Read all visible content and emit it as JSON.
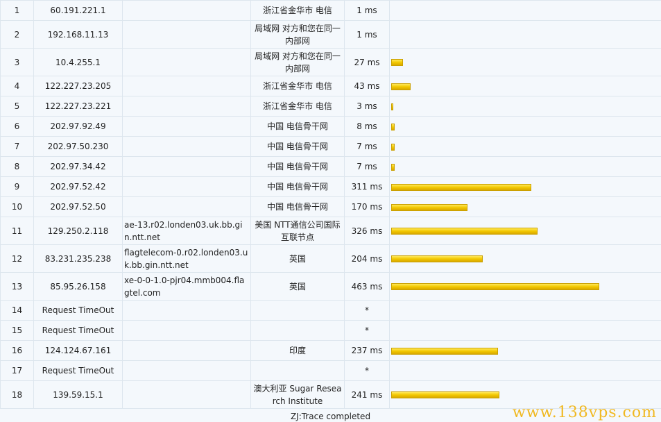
{
  "rows": [
    {
      "hop": "1",
      "ip": "60.191.221.1",
      "host": "",
      "location": "浙江省金华市 电信",
      "time": "1 ms",
      "ms": 1
    },
    {
      "hop": "2",
      "ip": "192.168.11.13",
      "host": "",
      "location": "局域网 对方和您在同一内部网",
      "time": "1 ms",
      "ms": 1
    },
    {
      "hop": "3",
      "ip": "10.4.255.1",
      "host": "",
      "location": "局域网 对方和您在同一内部网",
      "time": "27 ms",
      "ms": 27
    },
    {
      "hop": "4",
      "ip": "122.227.23.205",
      "host": "",
      "location": "浙江省金华市 电信",
      "time": "43 ms",
      "ms": 43
    },
    {
      "hop": "5",
      "ip": "122.227.23.221",
      "host": "",
      "location": "浙江省金华市 电信",
      "time": "3 ms",
      "ms": 3
    },
    {
      "hop": "6",
      "ip": "202.97.92.49",
      "host": "",
      "location": "中国 电信骨干网",
      "time": "8 ms",
      "ms": 8
    },
    {
      "hop": "7",
      "ip": "202.97.50.230",
      "host": "",
      "location": "中国 电信骨干网",
      "time": "7 ms",
      "ms": 7
    },
    {
      "hop": "8",
      "ip": "202.97.34.42",
      "host": "",
      "location": "中国 电信骨干网",
      "time": "7 ms",
      "ms": 7
    },
    {
      "hop": "9",
      "ip": "202.97.52.42",
      "host": "",
      "location": "中国 电信骨干网",
      "time": "311 ms",
      "ms": 311
    },
    {
      "hop": "10",
      "ip": "202.97.52.50",
      "host": "",
      "location": "中国 电信骨干网",
      "time": "170 ms",
      "ms": 170
    },
    {
      "hop": "11",
      "ip": "129.250.2.118",
      "host": "ae-13.r02.londen03.uk.bb.gin.ntt.net",
      "location": "美国 NTT通信公司国际互联节点",
      "time": "326 ms",
      "ms": 326
    },
    {
      "hop": "12",
      "ip": "83.231.235.238",
      "host": "flagtelecom-0.r02.londen03.uk.bb.gin.ntt.net",
      "location": "英国",
      "time": "204 ms",
      "ms": 204
    },
    {
      "hop": "13",
      "ip": "85.95.26.158",
      "host": "xe-0-0-1.0-pjr04.mmb004.flagtel.com",
      "location": "英国",
      "time": "463 ms",
      "ms": 463
    },
    {
      "hop": "14",
      "ip": "Request TimeOut",
      "host": "",
      "location": "",
      "time": "*",
      "ms": 0
    },
    {
      "hop": "15",
      "ip": "Request TimeOut",
      "host": "",
      "location": "",
      "time": "*",
      "ms": 0
    },
    {
      "hop": "16",
      "ip": "124.124.67.161",
      "host": "",
      "location": "印度",
      "time": "237 ms",
      "ms": 237
    },
    {
      "hop": "17",
      "ip": "Request TimeOut",
      "host": "",
      "location": "",
      "time": "*",
      "ms": 0
    },
    {
      "hop": "18",
      "ip": "139.59.15.1",
      "host": "",
      "location": "澳大利亚 Sugar Research Institute",
      "time": "241 ms",
      "ms": 241
    }
  ],
  "footer": "ZJ:Trace completed",
  "watermark": "www.138vps.com",
  "colors": {
    "bar": "#f2c800",
    "border": "#dde6ee",
    "background": "#f4f8fc",
    "watermark": "#f0b820"
  }
}
